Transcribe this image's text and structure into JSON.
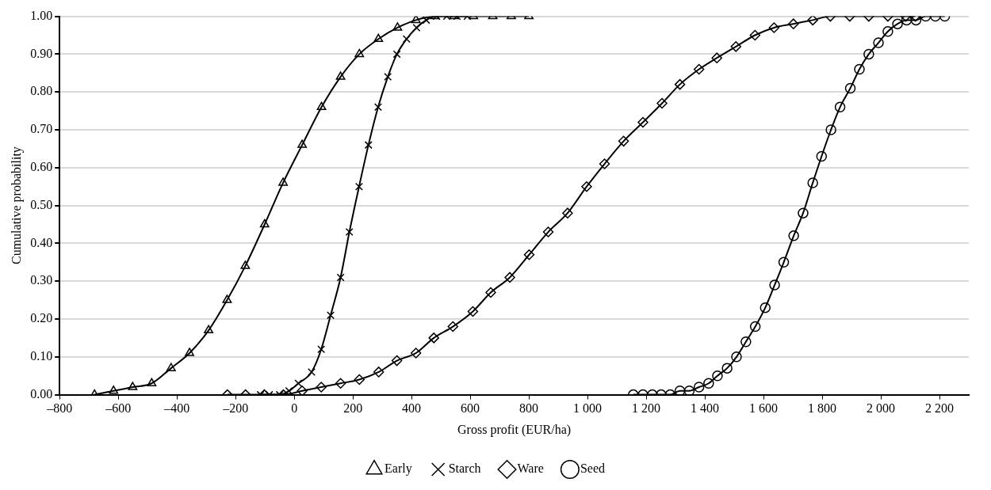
{
  "chart_data": {
    "type": "line",
    "xlabel": "Gross profit (EUR/ha)",
    "ylabel": "Cumulative probability",
    "xlim": [
      -800,
      2300
    ],
    "xticks": [
      {
        "value": -800,
        "label": "–800"
      },
      {
        "value": -600,
        "label": "–600"
      },
      {
        "value": -400,
        "label": "–400"
      },
      {
        "value": -200,
        "label": "–200"
      },
      0,
      200,
      400,
      600,
      800,
      {
        "value": 1000,
        "label": "1 000"
      },
      {
        "value": 1200,
        "label": "1 200"
      },
      {
        "value": 1400,
        "label": "1 400"
      },
      {
        "value": 1600,
        "label": "1 600"
      },
      {
        "value": 1800,
        "label": "1 800"
      },
      {
        "value": 2000,
        "label": "2 000"
      },
      {
        "value": 2200,
        "label": "2 200"
      }
    ],
    "ylim": [
      0,
      1
    ],
    "yticks": [
      {
        "value": 0,
        "label": "0.00"
      },
      {
        "value": 0.1,
        "label": "0.10"
      },
      {
        "value": 0.2,
        "label": "0.20"
      },
      {
        "value": 0.3,
        "label": "0.30"
      },
      {
        "value": 0.4,
        "label": "0.40"
      },
      {
        "value": 0.5,
        "label": "0.50"
      },
      {
        "value": 0.6,
        "label": "0.60"
      },
      {
        "value": 0.7,
        "label": "0.70"
      },
      {
        "value": 0.8,
        "label": "0.80"
      },
      {
        "value": 0.9,
        "label": "0.90"
      },
      {
        "value": 1,
        "label": "1.00"
      }
    ],
    "grid": "y",
    "legend": "bottom",
    "series": [
      {
        "name": "Early",
        "color": "#000000",
        "marker": "triangle",
        "x": [
          -681,
          -616,
          -551,
          -486,
          -420,
          -357,
          -292,
          -229,
          -167,
          -101,
          -38,
          27,
          93,
          158,
          222,
          287,
          352,
          415,
          480,
          545,
          611,
          677,
          740,
          800
        ],
        "values": [
          0.0,
          0.01,
          0.02,
          0.03,
          0.07,
          0.11,
          0.17,
          0.25,
          0.34,
          0.45,
          0.56,
          0.66,
          0.76,
          0.84,
          0.9,
          0.94,
          0.97,
          0.99,
          1.0,
          1.0,
          1.0,
          1.0,
          1.0,
          1.0
        ]
      },
      {
        "name": "Starch",
        "color": "#000000",
        "marker": "cross",
        "x": [
          -115,
          -85,
          -50,
          -18,
          14,
          59,
          92,
          124,
          158,
          188,
          221,
          253,
          286,
          319,
          350,
          383,
          417,
          450,
          485,
          520,
          555,
          590
        ],
        "values": [
          0.0,
          0.0,
          0.0,
          0.01,
          0.03,
          0.06,
          0.12,
          0.21,
          0.31,
          0.43,
          0.55,
          0.66,
          0.76,
          0.84,
          0.9,
          0.94,
          0.97,
          0.99,
          1.0,
          1.0,
          1.0,
          1.0
        ]
      },
      {
        "name": "Ware",
        "color": "#000000",
        "marker": "diamond",
        "x": [
          -228,
          -166,
          -102,
          -37,
          27,
          92,
          158,
          222,
          288,
          350,
          415,
          476,
          541,
          609,
          670,
          735,
          801,
          866,
          932,
          997,
          1058,
          1123,
          1189,
          1254,
          1315,
          1380,
          1441,
          1506,
          1571,
          1636,
          1702,
          1768,
          1828,
          1894,
          1959,
          2024,
          2085,
          2118
        ],
        "values": [
          0.0,
          0.0,
          0.0,
          0.0,
          0.01,
          0.02,
          0.03,
          0.04,
          0.06,
          0.09,
          0.11,
          0.15,
          0.18,
          0.22,
          0.27,
          0.31,
          0.37,
          0.43,
          0.48,
          0.55,
          0.61,
          0.67,
          0.72,
          0.77,
          0.82,
          0.86,
          0.89,
          0.92,
          0.95,
          0.97,
          0.98,
          0.99,
          1.0,
          1.0,
          1.0,
          1.0,
          1.0,
          1.0
        ]
      },
      {
        "name": "Seed",
        "color": "#000000",
        "marker": "circle",
        "x": [
          1156,
          1189,
          1221,
          1251,
          1282,
          1315,
          1347,
          1380,
          1413,
          1443,
          1476,
          1508,
          1540,
          1572,
          1606,
          1638,
          1669,
          1703,
          1735,
          1768,
          1798,
          1830,
          1861,
          1896,
          1927,
          1959,
          1992,
          2024,
          2057,
          2088,
          2120,
          2153,
          2186,
          2218
        ],
        "values": [
          0.0,
          0.0,
          0.0,
          0.0,
          0.0,
          0.01,
          0.01,
          0.02,
          0.03,
          0.05,
          0.07,
          0.1,
          0.14,
          0.18,
          0.23,
          0.29,
          0.35,
          0.42,
          0.48,
          0.56,
          0.63,
          0.7,
          0.76,
          0.81,
          0.86,
          0.9,
          0.93,
          0.96,
          0.98,
          0.99,
          0.99,
          1.0,
          1.0,
          1.0
        ]
      }
    ]
  }
}
